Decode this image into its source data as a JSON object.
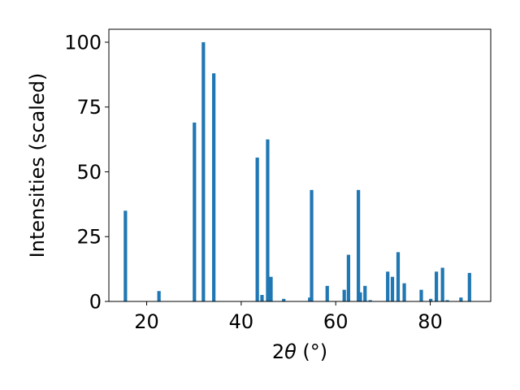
{
  "chart_data": {
    "type": "bar",
    "xlabel_main": "2",
    "xlabel_theta": "θ",
    "xlabel_unit": " (°)",
    "ylabel": "Intensities (scaled)",
    "xlim": [
      12,
      92.8
    ],
    "ylim": [
      0,
      105
    ],
    "grid": false,
    "bar_color": "#1f77b4",
    "x_ticks": [
      20,
      40,
      60,
      80
    ],
    "x_tick_labels": [
      "20",
      "40",
      "60",
      "80"
    ],
    "y_ticks": [
      0,
      25,
      50,
      75,
      100
    ],
    "y_tick_labels": [
      "0",
      "25",
      "50",
      "75",
      "100"
    ],
    "x": [
      15.5,
      22.6,
      30.1,
      32.0,
      34.2,
      43.4,
      44.4,
      45.6,
      46.3,
      49.0,
      54.5,
      54.9,
      58.2,
      61.8,
      62.7,
      64.8,
      65.2,
      66.2,
      67.3,
      71.0,
      72.0,
      73.2,
      74.5,
      78.1,
      80.1,
      81.3,
      82.6,
      83.6,
      86.5,
      88.3
    ],
    "values": [
      35,
      4,
      69,
      100,
      88,
      55.5,
      2.5,
      62.5,
      9.5,
      1,
      1.5,
      43,
      6,
      4.5,
      18,
      43,
      3.5,
      6,
      0.5,
      11.5,
      9.5,
      19,
      7,
      4.5,
      1,
      11.5,
      13,
      0.5,
      1.5,
      11
    ]
  }
}
